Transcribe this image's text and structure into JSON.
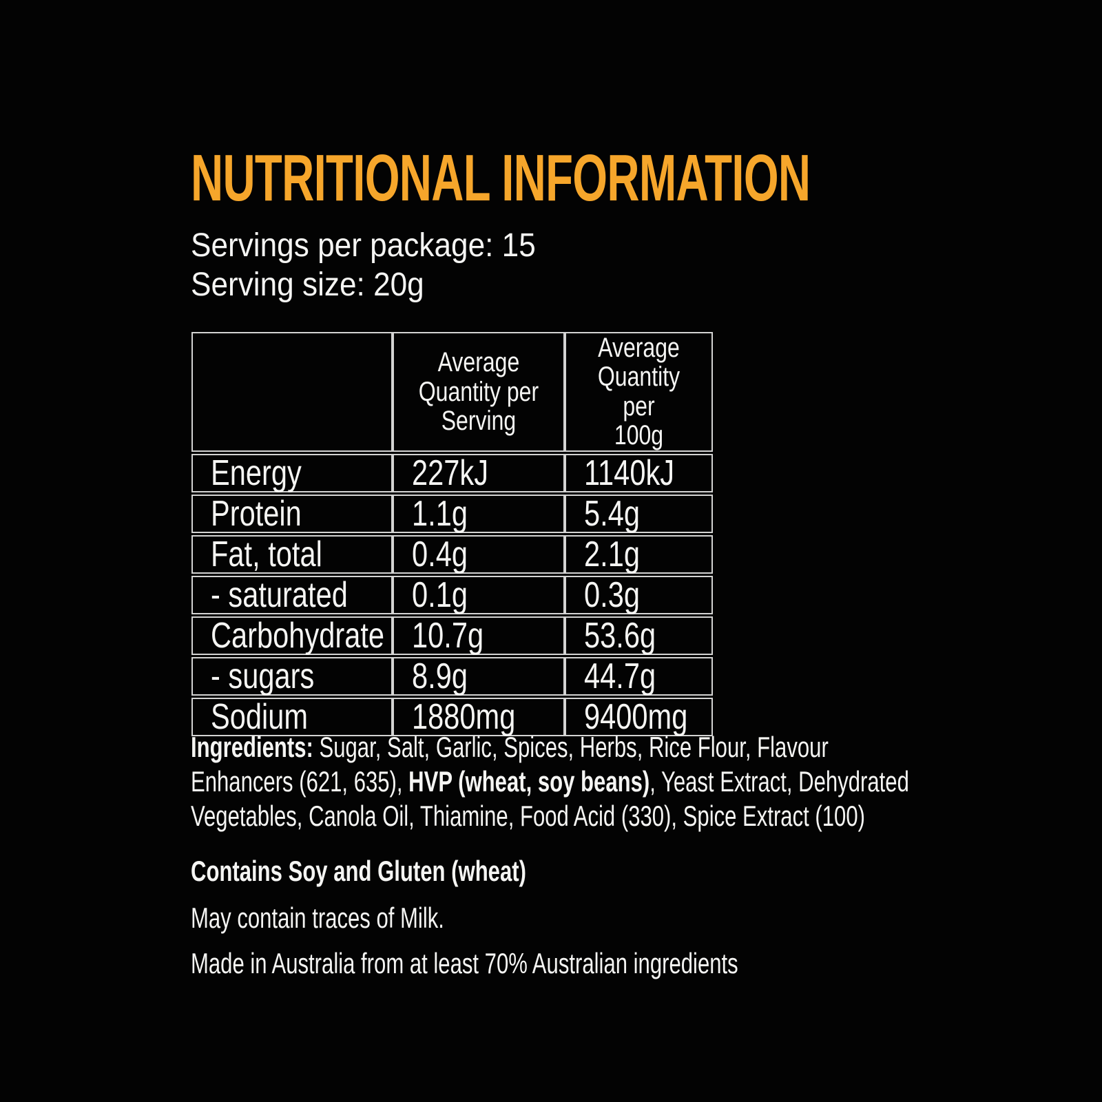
{
  "page": {
    "background_color": "#030303",
    "accent_color": "#F6A62B",
    "text_color": "#F5F5F3",
    "table_border_color": "#D4D4D3"
  },
  "header": {
    "title": "NUTRITIONAL INFORMATION"
  },
  "serving_info": {
    "servings_per_package": "Servings per package: 15",
    "serving_size": "Serving size: 20g"
  },
  "table": {
    "columns": [
      "",
      "Average\nQuantity per\nServing",
      "Average\nQuantity per\n100g"
    ],
    "rows": [
      {
        "label": "Energy",
        "per_serving": "227kJ",
        "per_100g": "1140kJ"
      },
      {
        "label": "Protein",
        "per_serving": "1.1g",
        "per_100g": "5.4g"
      },
      {
        "label": "Fat, total",
        "per_serving": "0.4g",
        "per_100g": "2.1g"
      },
      {
        "label": "- saturated",
        "per_serving": "0.1g",
        "per_100g": "0.3g"
      },
      {
        "label": "Carbohydrate",
        "per_serving": "10.7g",
        "per_100g": "53.6g"
      },
      {
        "label": "- sugars",
        "per_serving": "8.9g",
        "per_100g": "44.7g"
      },
      {
        "label": "Sodium",
        "per_serving": "1880mg",
        "per_100g": "9400mg"
      }
    ]
  },
  "ingredients": {
    "lines": [
      {
        "segments": [
          {
            "text": "Ingredients:",
            "bold": true
          },
          {
            "text": " Sugar, Salt, Garlic, Spices, Herbs, Rice Flour, Flavour",
            "bold": false
          }
        ]
      },
      {
        "segments": [
          {
            "text": "Enhancers (621, 635), ",
            "bold": false
          },
          {
            "text": "HVP (wheat, soy beans)",
            "bold": true
          },
          {
            "text": ", Yeast Extract, Dehydrated",
            "bold": false
          }
        ]
      },
      {
        "segments": [
          {
            "text": "Vegetables, Canola Oil, Thiamine, Food Acid (330), Spice Extract (100)",
            "bold": false
          }
        ]
      }
    ]
  },
  "allergen": {
    "contains": "Contains Soy and Gluten (wheat)",
    "traces": "May contain traces of Milk."
  },
  "origin": {
    "statement": "Made in Australia from at least 70% Australian ingredients"
  }
}
